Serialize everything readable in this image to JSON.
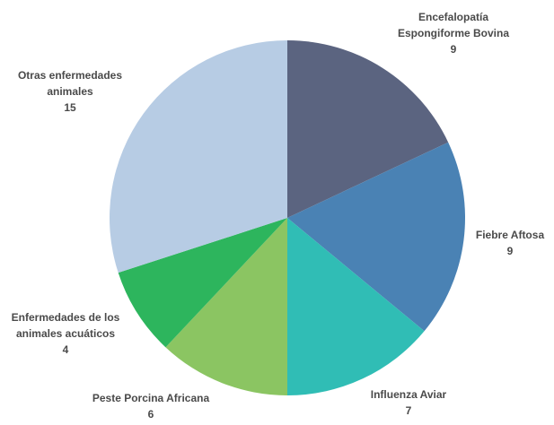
{
  "chart_data": {
    "type": "pie",
    "categories": [
      [
        "Encefalopatía",
        "Espongiforme Bovina"
      ],
      [
        "Fiebre Aftosa"
      ],
      [
        "Influenza Aviar"
      ],
      [
        "Peste Porcina Africana"
      ],
      [
        "Enfermedades de los",
        "animales acuáticos"
      ],
      [
        "Otras enfermedades",
        "animales"
      ]
    ],
    "values": [
      9,
      9,
      7,
      6,
      4,
      15
    ],
    "colors": [
      "#5b6480",
      "#4a82b4",
      "#30bdb5",
      "#8bc562",
      "#2db55d",
      "#b7cce4"
    ]
  }
}
